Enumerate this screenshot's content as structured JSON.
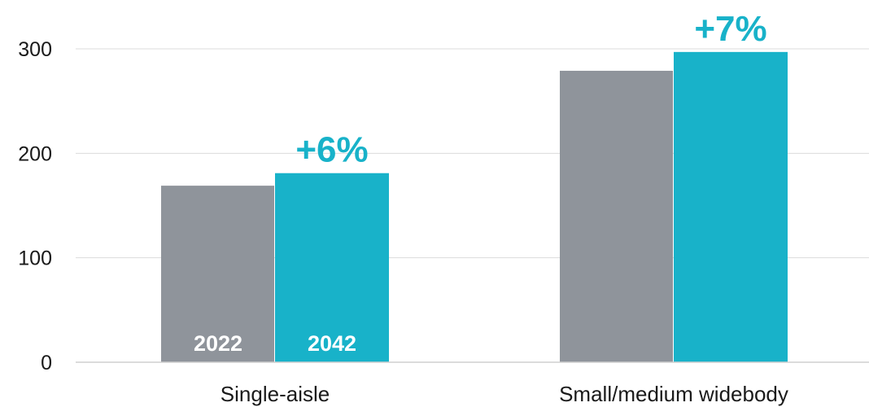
{
  "chart_data": {
    "type": "bar",
    "categories": [
      "Single-aisle",
      "Small/medium widebody"
    ],
    "series": [
      {
        "name": "2022",
        "values": [
          169,
          279
        ],
        "color": "#8f949b"
      },
      {
        "name": "2042",
        "values": [
          181,
          297
        ],
        "color": "#18b2c9"
      }
    ],
    "growth_labels": [
      "+6%",
      "+7%"
    ],
    "growth_color": "#18b2c9",
    "yticks": [
      0,
      100,
      200,
      300
    ],
    "ylim": [
      0,
      300
    ],
    "grid": true,
    "legend": "inside-bars"
  }
}
